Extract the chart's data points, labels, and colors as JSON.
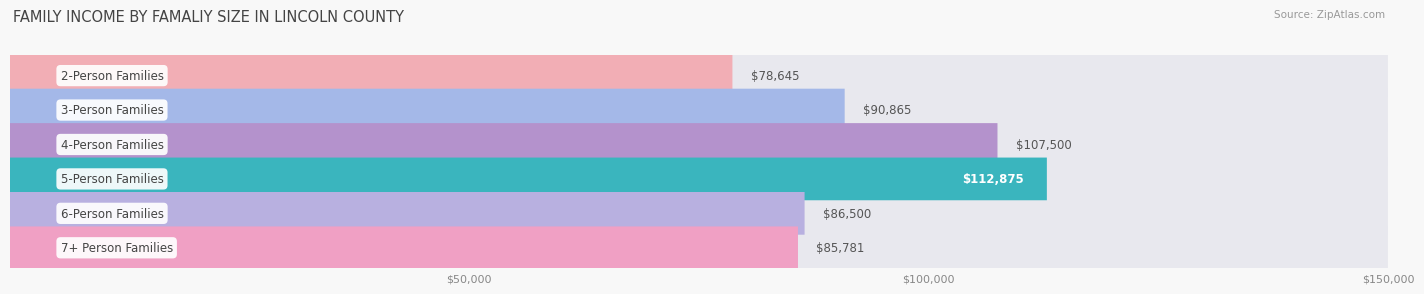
{
  "title": "FAMILY INCOME BY FAMALIY SIZE IN LINCOLN COUNTY",
  "source": "Source: ZipAtlas.com",
  "categories": [
    "2-Person Families",
    "3-Person Families",
    "4-Person Families",
    "5-Person Families",
    "6-Person Families",
    "7+ Person Families"
  ],
  "values": [
    78645,
    90865,
    107500,
    112875,
    86500,
    85781
  ],
  "labels": [
    "$78,645",
    "$90,865",
    "$107,500",
    "$112,875",
    "$86,500",
    "$85,781"
  ],
  "bar_colors": [
    "#f2aeb5",
    "#a4b8e8",
    "#b492cc",
    "#3ab5be",
    "#b8b0e0",
    "#f0a0c4"
  ],
  "bar_bg_color": "#e8e8ee",
  "background_color": "#f8f8f8",
  "xlim": [
    0,
    150000
  ],
  "xticks": [
    50000,
    100000,
    150000
  ],
  "xtick_labels": [
    "$50,000",
    "$100,000",
    "$150,000"
  ],
  "title_fontsize": 10.5,
  "label_fontsize": 8.5,
  "value_fontsize": 8.5,
  "bar_height": 0.62,
  "value_label_color_dark": "#555555",
  "value_label_color_light": "#ffffff",
  "teal_bar_index": 3,
  "grid_color": "#cccccc",
  "label_bg_color": "#ffffff"
}
